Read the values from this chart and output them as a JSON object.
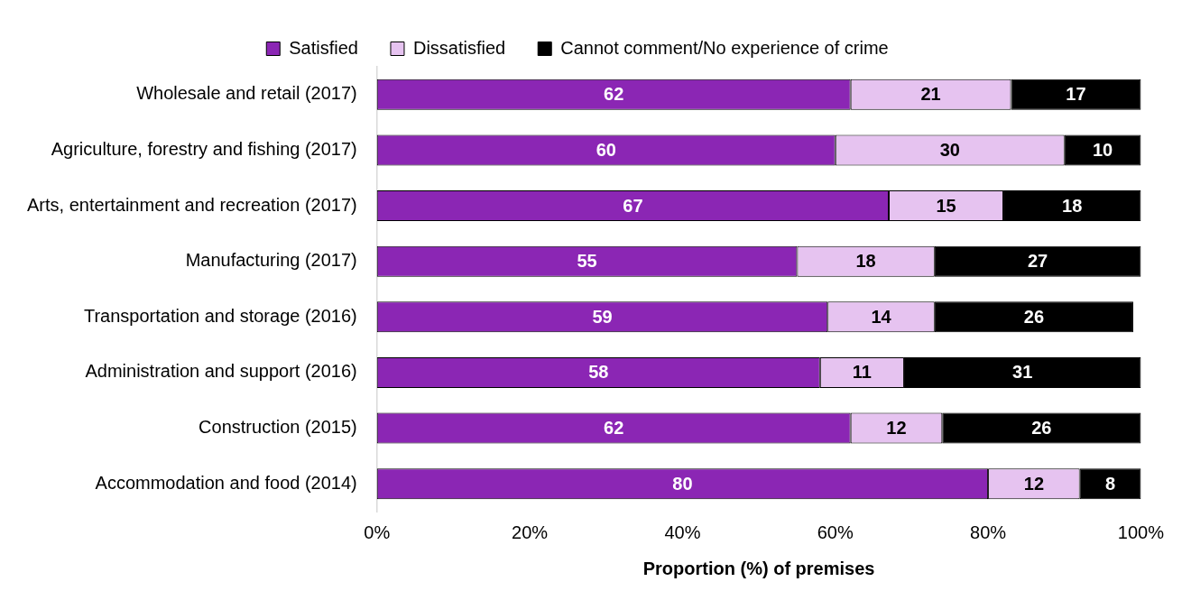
{
  "chart_data": {
    "type": "bar",
    "orientation": "horizontal",
    "stacked": true,
    "xlabel": "Proportion (%) of premises",
    "categories": [
      "Wholesale and retail (2017)",
      "Agriculture, forestry and fishing (2017)",
      "Arts, entertainment and recreation (2017)",
      "Manufacturing (2017)",
      "Transportation and storage (2016)",
      "Administration and support (2016)",
      "Construction (2015)",
      "Accommodation and food (2014)"
    ],
    "series": [
      {
        "name": "Satisfied",
        "color": "#8b26b4",
        "values": [
          62,
          60,
          67,
          55,
          59,
          58,
          62,
          80
        ]
      },
      {
        "name": "Dissatisfied",
        "color": "#e6c3f0",
        "values": [
          21,
          30,
          15,
          18,
          14,
          11,
          12,
          12
        ]
      },
      {
        "name": "Cannot comment/No experience of crime",
        "color": "#000000",
        "values": [
          17,
          10,
          18,
          27,
          26,
          31,
          26,
          8
        ]
      }
    ],
    "xlim": [
      0,
      100
    ],
    "xticks": [
      {
        "value": 0,
        "label": "0%"
      },
      {
        "value": 20,
        "label": "20%"
      },
      {
        "value": 40,
        "label": "40%"
      },
      {
        "value": 60,
        "label": "60%"
      },
      {
        "value": 80,
        "label": "80%"
      },
      {
        "value": 100,
        "label": "100%"
      }
    ],
    "data_labels": true,
    "legend": "top",
    "grid": false
  }
}
